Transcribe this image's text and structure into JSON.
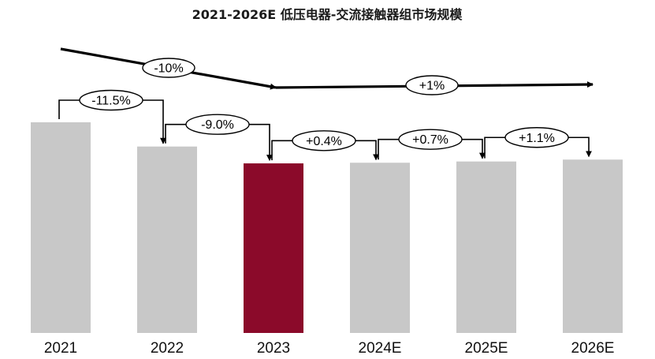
{
  "chart_data": {
    "type": "bar",
    "title": "2021-2026E 低压电器-交流接触器组市场规模",
    "categories": [
      "2021",
      "2022",
      "2023",
      "2024E",
      "2025E",
      "2026E"
    ],
    "values": [
      100,
      88.5,
      80.5,
      80.8,
      81.4,
      82.3
    ],
    "highlight_index": 2,
    "colors": {
      "bar": "#c8c8c8",
      "highlight": "#8b0a2a",
      "ink": "#000000"
    },
    "change_labels": [
      "-11.5%",
      "-9.0%",
      "+0.4%",
      "+0.7%",
      "+1.1%"
    ],
    "trend_labels": [
      "-10%",
      "+1%"
    ],
    "ylim": [
      0,
      100
    ],
    "grid": false
  }
}
